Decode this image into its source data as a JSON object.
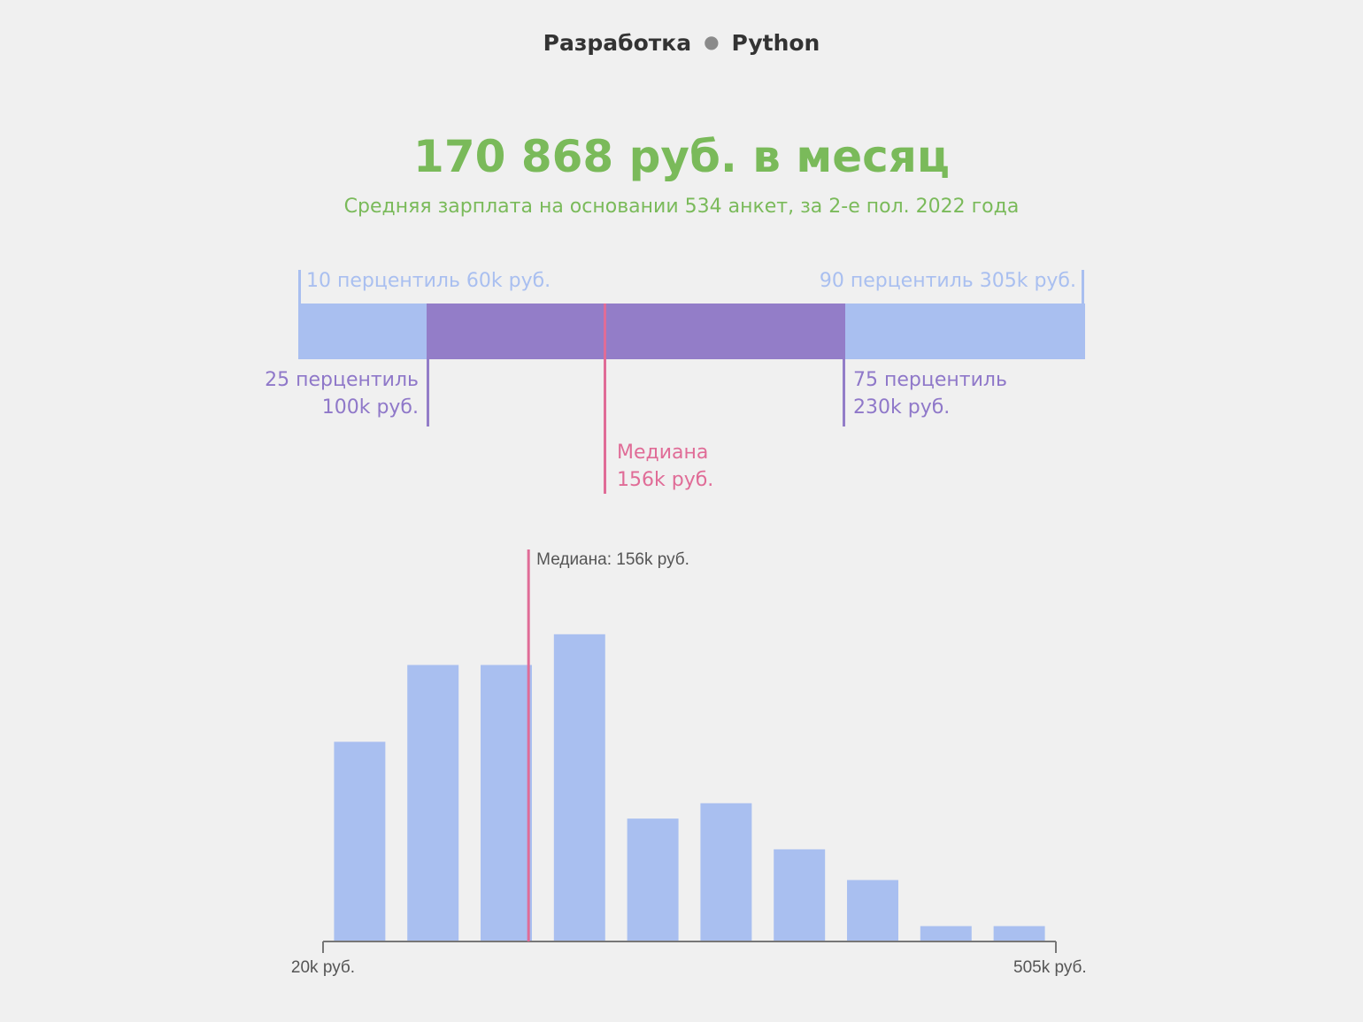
{
  "breadcrumb": {
    "category": "Разработка",
    "language": "Python"
  },
  "headline": "170 868 руб. в месяц",
  "subline": "Средняя зарплата на основании 534 анкет, за 2-е пол. 2022 года",
  "percentiles": {
    "p10": {
      "label": "10 перцентиль 60k руб.",
      "value": 60
    },
    "p90": {
      "label": "90 перцентиль 305k руб.",
      "value": 305
    },
    "p25": {
      "label_line1": "25 перцентиль",
      "label_line2": "100k руб.",
      "value": 100
    },
    "p75": {
      "label_line1": "75 перцентиль",
      "label_line2": "230k руб.",
      "value": 230
    },
    "median": {
      "label_line1": "Медиана",
      "label_line2": "156k руб.",
      "value": 156
    }
  },
  "colors": {
    "blue": "#a9bff0",
    "purple": "#937dc8",
    "pink": "#e06c97",
    "green": "#7aba5a",
    "axis": "#777777"
  },
  "chart_data": {
    "type": "bar",
    "title": "",
    "xlabel": "",
    "ylabel": "",
    "x_range_labels": [
      "20k руб.",
      "505k руб."
    ],
    "x_range": [
      20,
      505
    ],
    "bins": 10,
    "values": [
      65,
      90,
      90,
      100,
      40,
      45,
      30,
      20,
      5,
      5
    ],
    "ylim": [
      0,
      125
    ],
    "median": {
      "value": 156,
      "label": "Медиана: 156k руб."
    }
  }
}
